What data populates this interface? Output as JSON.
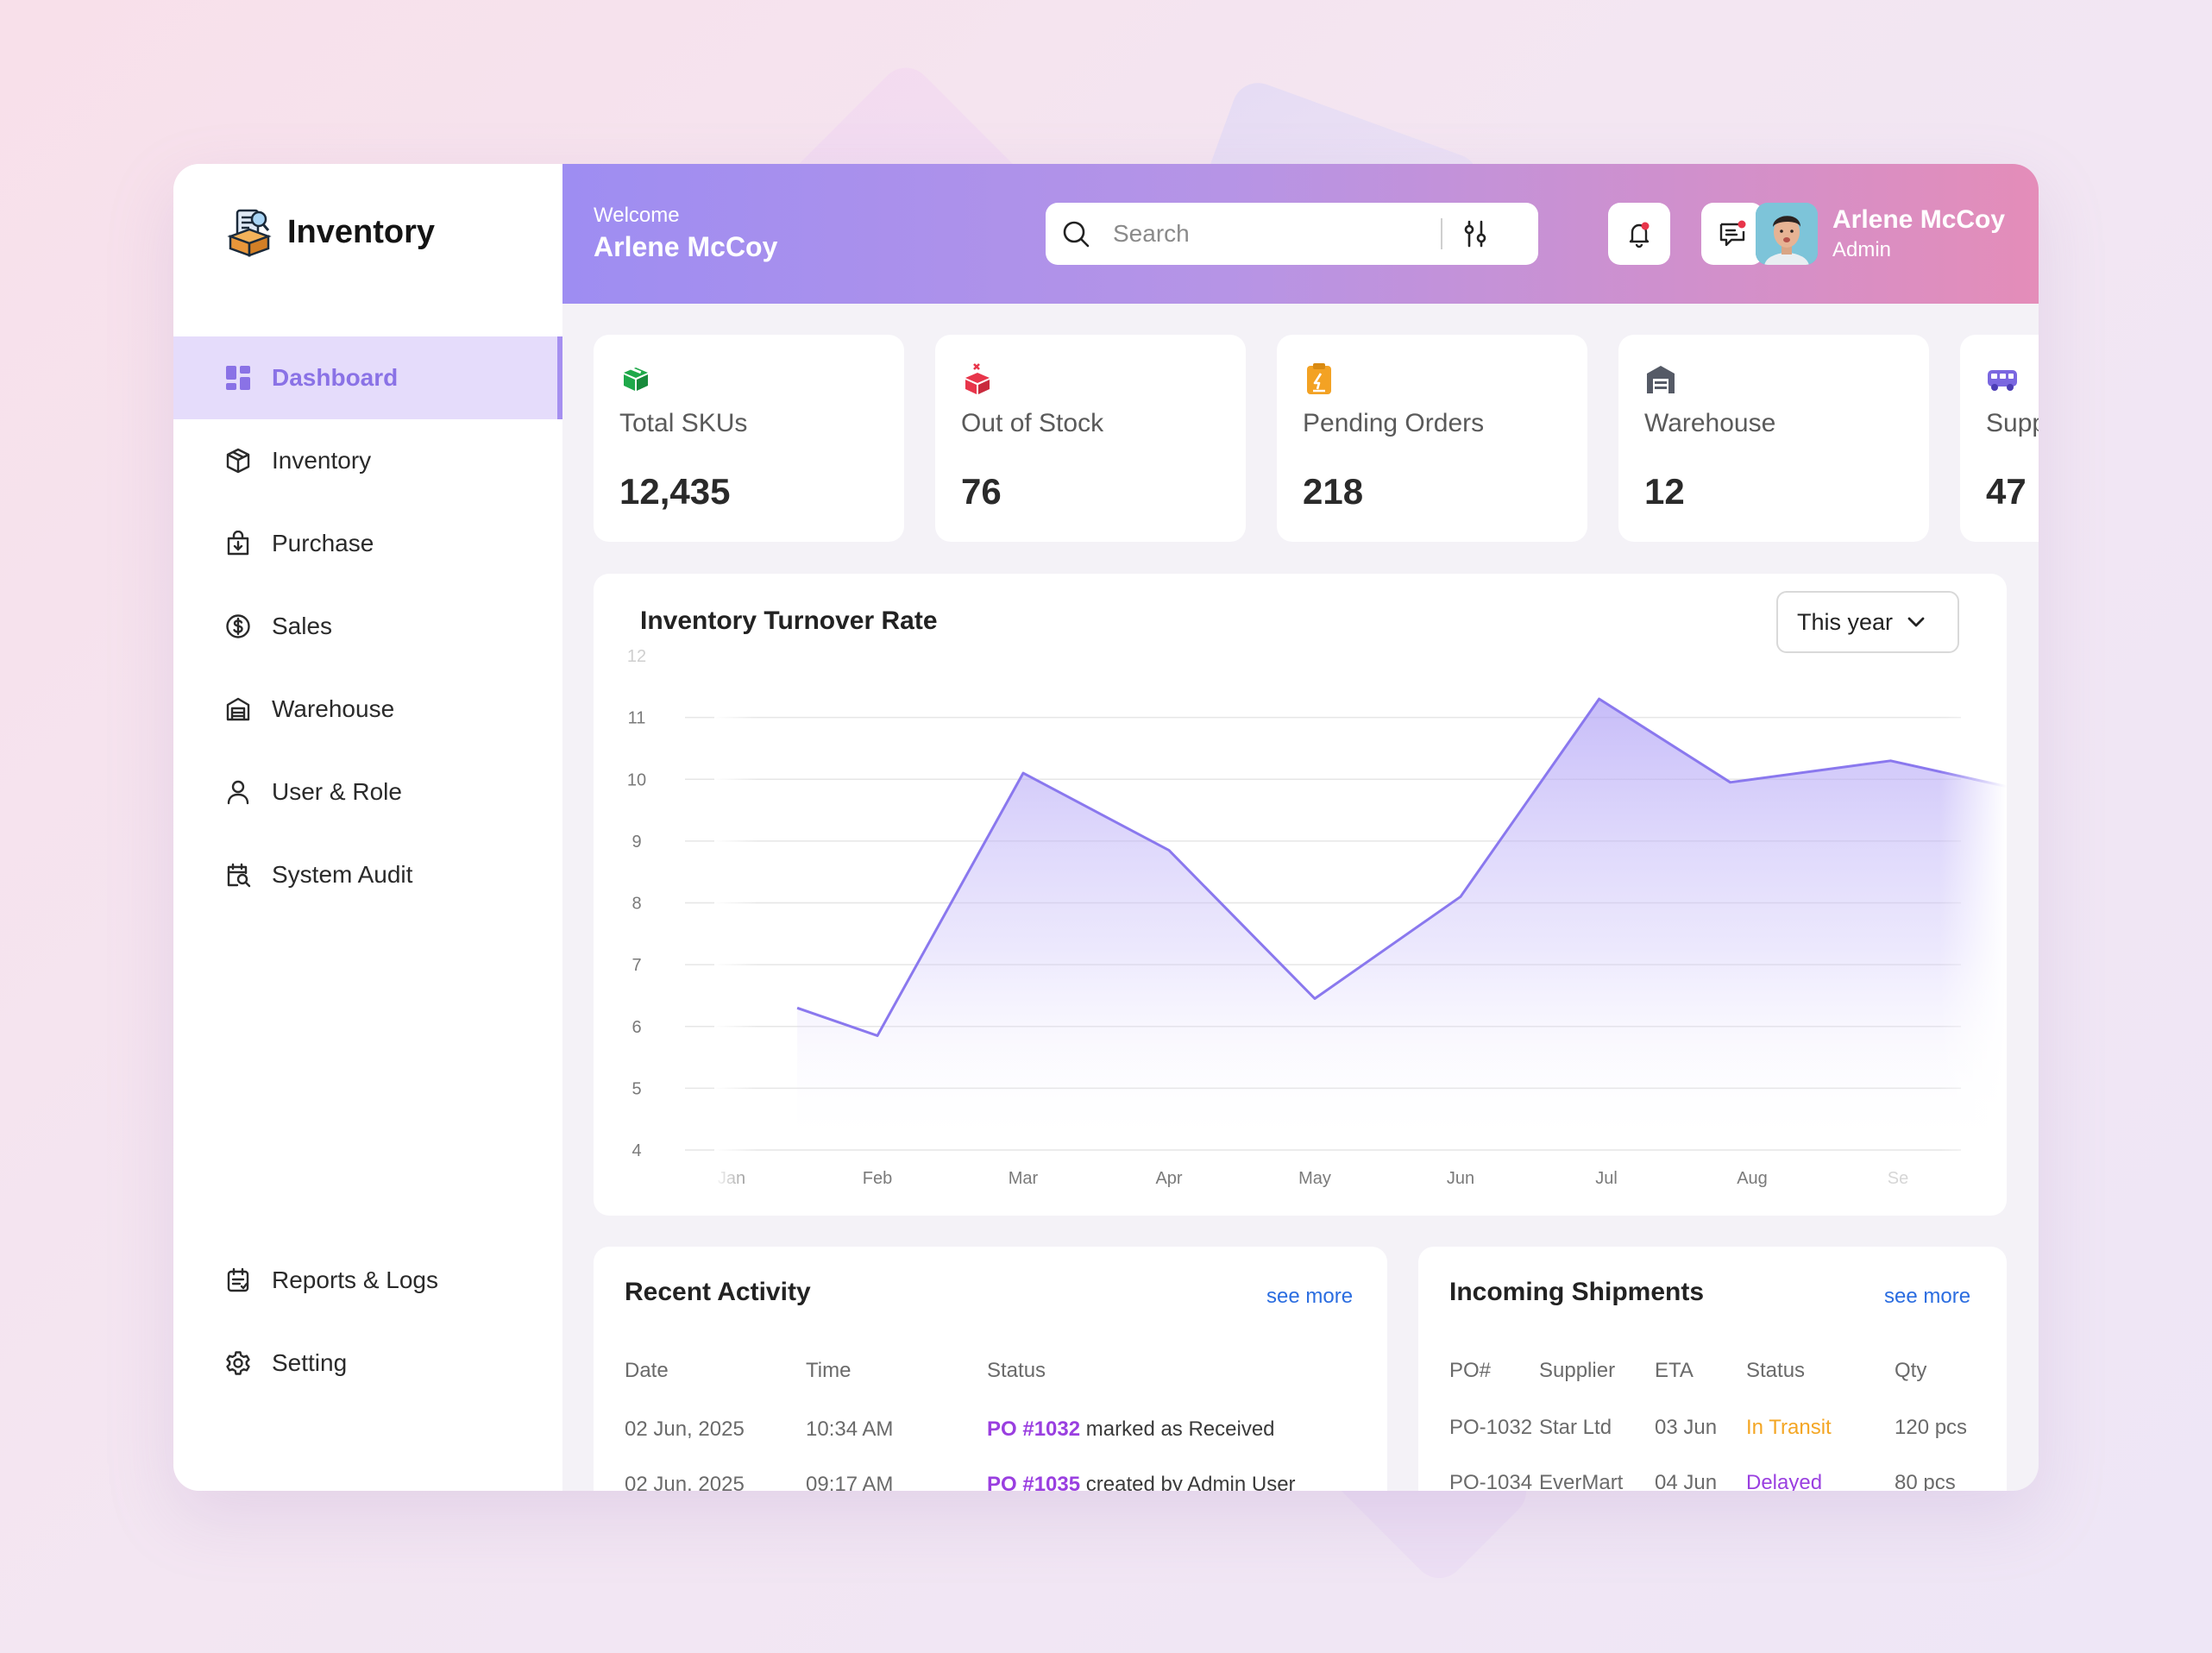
{
  "app": {
    "brand": "Inventory"
  },
  "sidebar": {
    "items": [
      {
        "label": "Dashboard",
        "icon": "dashboard-icon",
        "active": true
      },
      {
        "label": "Inventory",
        "icon": "box-icon"
      },
      {
        "label": "Purchase",
        "icon": "purchase-bag-icon"
      },
      {
        "label": "Sales",
        "icon": "dollar-icon"
      },
      {
        "label": "Warehouse",
        "icon": "warehouse-icon"
      },
      {
        "label": "User & Role",
        "icon": "user-icon"
      },
      {
        "label": "System Audit",
        "icon": "audit-icon"
      }
    ],
    "bottom_items": [
      {
        "label": "Reports & Logs",
        "icon": "reports-icon"
      },
      {
        "label": "Setting",
        "icon": "gear-icon"
      }
    ]
  },
  "header": {
    "welcome": "Welcome",
    "name": "Arlene McCoy",
    "search_placeholder": "Search",
    "user": {
      "name": "Arlene McCoy",
      "role": "Admin"
    }
  },
  "stats": [
    {
      "label": "Total SKUs",
      "value": "12,435",
      "icon": "box-green-icon",
      "color": "#1fa94a"
    },
    {
      "label": "Out of Stock",
      "value": "76",
      "icon": "box-red-icon",
      "color": "#e8354a"
    },
    {
      "label": "Pending Orders",
      "value": "218",
      "icon": "clipboard-icon",
      "color": "#f3a224"
    },
    {
      "label": "Warehouse",
      "value": "12",
      "icon": "warehouse-icon",
      "color": "#555a66"
    },
    {
      "label": "Supp",
      "value": "47",
      "icon": "van-icon",
      "color": "#7a67e0"
    }
  ],
  "chart": {
    "title": "Inventory Turnover Rate",
    "period": "This year"
  },
  "chart_data": {
    "type": "area",
    "title": "Inventory Turnover Rate",
    "x": [
      "Jan",
      "Feb",
      "Mar",
      "Apr",
      "May",
      "Jun",
      "Jul",
      "Aug",
      "Se"
    ],
    "y_ticks": [
      12,
      11,
      10,
      9,
      8,
      7,
      6,
      5,
      4
    ],
    "ylim": [
      4,
      12
    ],
    "points": [
      {
        "x": 0.45,
        "y": 6.3
      },
      {
        "x": 1.0,
        "y": 5.85
      },
      {
        "x": 2.0,
        "y": 10.1
      },
      {
        "x": 3.0,
        "y": 8.85
      },
      {
        "x": 4.0,
        "y": 6.45
      },
      {
        "x": 5.0,
        "y": 8.1
      },
      {
        "x": 5.95,
        "y": 11.3
      },
      {
        "x": 6.85,
        "y": 9.95
      },
      {
        "x": 7.95,
        "y": 10.3
      },
      {
        "x": 9.0,
        "y": 9.75
      }
    ],
    "line_color": "#8a78ee",
    "grid": true
  },
  "activity": {
    "title": "Recent Activity",
    "see_more": "see more",
    "columns": [
      "Date",
      "Time",
      "Status"
    ],
    "rows": [
      {
        "date": "02 Jun, 2025",
        "time": "10:34 AM",
        "po": "PO #1032",
        "text": "marked as Received"
      },
      {
        "date": "02 Jun, 2025",
        "time": "09:17 AM",
        "po": "PO #1035",
        "text": "created by Admin User"
      }
    ]
  },
  "shipments": {
    "title": "Incoming Shipments",
    "see_more": "see more",
    "columns": [
      "PO#",
      "Supplier",
      "ETA",
      "Status",
      "Qty"
    ],
    "rows": [
      {
        "po": "PO-1032",
        "supplier": "Star Ltd",
        "eta": "03 Jun",
        "status": "In Transit",
        "status_color": "#f4a623",
        "qty": "120 pcs"
      },
      {
        "po": "PO-1034",
        "supplier": "EverMart",
        "eta": "04 Jun",
        "status": "Delayed",
        "status_color": "#9a3fe0",
        "qty": "80 pcs"
      }
    ]
  }
}
